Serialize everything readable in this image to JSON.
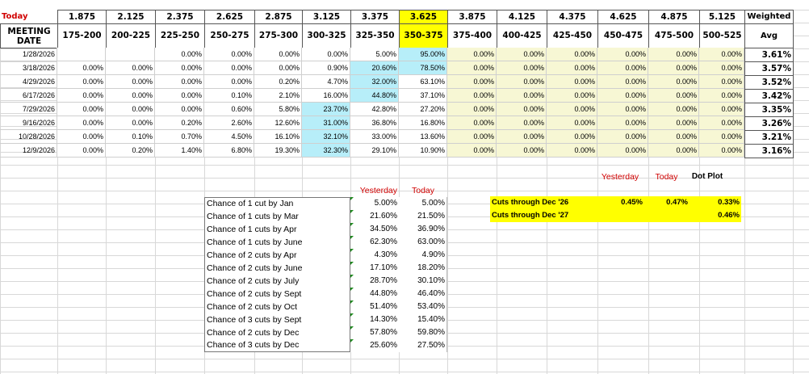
{
  "today_label": "Today",
  "meeting_date_label": "MEETING DATE",
  "weighted_label": "Weighted",
  "avg_label": "Avg",
  "rates": [
    "1.875",
    "2.125",
    "2.375",
    "2.625",
    "2.875",
    "3.125",
    "3.375",
    "3.625",
    "3.875",
    "4.125",
    "4.375",
    "4.625",
    "4.875",
    "5.125"
  ],
  "ranges": [
    "175-200",
    "200-225",
    "225-250",
    "250-275",
    "275-300",
    "300-325",
    "325-350",
    "350-375",
    "375-400",
    "400-425",
    "425-450",
    "450-475",
    "475-500",
    "500-525"
  ],
  "meetings": [
    {
      "date": "1/28/2026",
      "cells": [
        "",
        "",
        "0.00%",
        "0.00%",
        "0.00%",
        "0.00%",
        "5.00%",
        "95.00%",
        "0.00%",
        "0.00%",
        "0.00%",
        "0.00%",
        "0.00%",
        "0.00%"
      ],
      "avg": "3.61%"
    },
    {
      "date": "3/18/2026",
      "cells": [
        "0.00%",
        "0.00%",
        "0.00%",
        "0.00%",
        "0.00%",
        "0.90%",
        "20.60%",
        "78.50%",
        "0.00%",
        "0.00%",
        "0.00%",
        "0.00%",
        "0.00%",
        "0.00%"
      ],
      "avg": "3.57%"
    },
    {
      "date": "4/29/2026",
      "cells": [
        "0.00%",
        "0.00%",
        "0.00%",
        "0.00%",
        "0.20%",
        "4.70%",
        "32.00%",
        "63.10%",
        "0.00%",
        "0.00%",
        "0.00%",
        "0.00%",
        "0.00%",
        "0.00%"
      ],
      "avg": "3.52%"
    },
    {
      "date": "6/17/2026",
      "cells": [
        "0.00%",
        "0.00%",
        "0.00%",
        "0.10%",
        "2.10%",
        "16.00%",
        "44.80%",
        "37.10%",
        "0.00%",
        "0.00%",
        "0.00%",
        "0.00%",
        "0.00%",
        "0.00%"
      ],
      "avg": "3.42%"
    },
    {
      "date": "7/29/2026",
      "cells": [
        "0.00%",
        "0.00%",
        "0.00%",
        "0.60%",
        "5.80%",
        "23.70%",
        "42.80%",
        "27.20%",
        "0.00%",
        "0.00%",
        "0.00%",
        "0.00%",
        "0.00%",
        "0.00%"
      ],
      "avg": "3.35%"
    },
    {
      "date": "9/16/2026",
      "cells": [
        "0.00%",
        "0.00%",
        "0.20%",
        "2.60%",
        "12.60%",
        "31.00%",
        "36.80%",
        "16.80%",
        "0.00%",
        "0.00%",
        "0.00%",
        "0.00%",
        "0.00%",
        "0.00%"
      ],
      "avg": "3.26%"
    },
    {
      "date": "10/28/2026",
      "cells": [
        "0.00%",
        "0.10%",
        "0.70%",
        "4.50%",
        "16.10%",
        "32.10%",
        "33.00%",
        "13.60%",
        "0.00%",
        "0.00%",
        "0.00%",
        "0.00%",
        "0.00%",
        "0.00%"
      ],
      "avg": "3.21%"
    },
    {
      "date": "12/9/2026",
      "cells": [
        "0.00%",
        "0.20%",
        "1.40%",
        "6.80%",
        "19.30%",
        "32.30%",
        "29.10%",
        "10.90%",
        "0.00%",
        "0.00%",
        "0.00%",
        "0.00%",
        "0.00%",
        "0.00%"
      ],
      "avg": "3.16%"
    }
  ],
  "highlight_cyan": [
    [
      1,
      6
    ],
    [
      2,
      6
    ],
    [
      3,
      6
    ],
    [
      4,
      5
    ],
    [
      5,
      5
    ],
    [
      6,
      5
    ],
    [
      7,
      5
    ],
    [
      0,
      7
    ],
    [
      1,
      7
    ]
  ],
  "chances_header": {
    "yesterday": "Yesterday",
    "today": "Today"
  },
  "chances": [
    {
      "label": "Chance of 1 cut by Jan",
      "yesterday": "5.00%",
      "today": "5.00%"
    },
    {
      "label": "Chance of 1 cuts by Mar",
      "yesterday": "21.60%",
      "today": "21.50%"
    },
    {
      "label": "Chance of 1 cuts by Apr",
      "yesterday": "34.50%",
      "today": "36.90%"
    },
    {
      "label": "Chance of 1 cuts by June",
      "yesterday": "62.30%",
      "today": "63.00%"
    },
    {
      "label": "Chance of 2 cuts by Apr",
      "yesterday": "4.30%",
      "today": "4.90%"
    },
    {
      "label": "Chance of 2 cuts by June",
      "yesterday": "17.10%",
      "today": "18.20%"
    },
    {
      "label": "Chance of 2 cuts by July",
      "yesterday": "28.70%",
      "today": "30.10%"
    },
    {
      "label": "Chance of 2 cuts by Sept",
      "yesterday": "44.80%",
      "today": "46.40%"
    },
    {
      "label": "Chance of 2 cuts by Oct",
      "yesterday": "51.40%",
      "today": "53.40%"
    },
    {
      "label": "Chance of 3 cuts by Sept",
      "yesterday": "14.30%",
      "today": "15.40%"
    },
    {
      "label": "Chance of 2 cuts by Dec",
      "yesterday": "57.80%",
      "today": "59.80%"
    },
    {
      "label": "Chance of 3 cuts by Dec",
      "yesterday": "25.60%",
      "today": "27.50%"
    }
  ],
  "cuts_header": {
    "yesterday": "Yesterday",
    "today": "Today",
    "dotplot": "Dot Plot"
  },
  "cuts": [
    {
      "label": "Cuts through Dec '26",
      "yesterday": "0.45%",
      "today": "0.47%",
      "dotplot": "0.33%"
    },
    {
      "label": "Cuts through Dec '27",
      "yesterday": "",
      "today": "",
      "dotplot": "0.46%"
    }
  ],
  "colors": {
    "yellow": "#ffff00",
    "cyan": "#b7eef9",
    "cream": "#f7f7d4",
    "red": "#d00000",
    "marker": "#1f8a1f"
  }
}
